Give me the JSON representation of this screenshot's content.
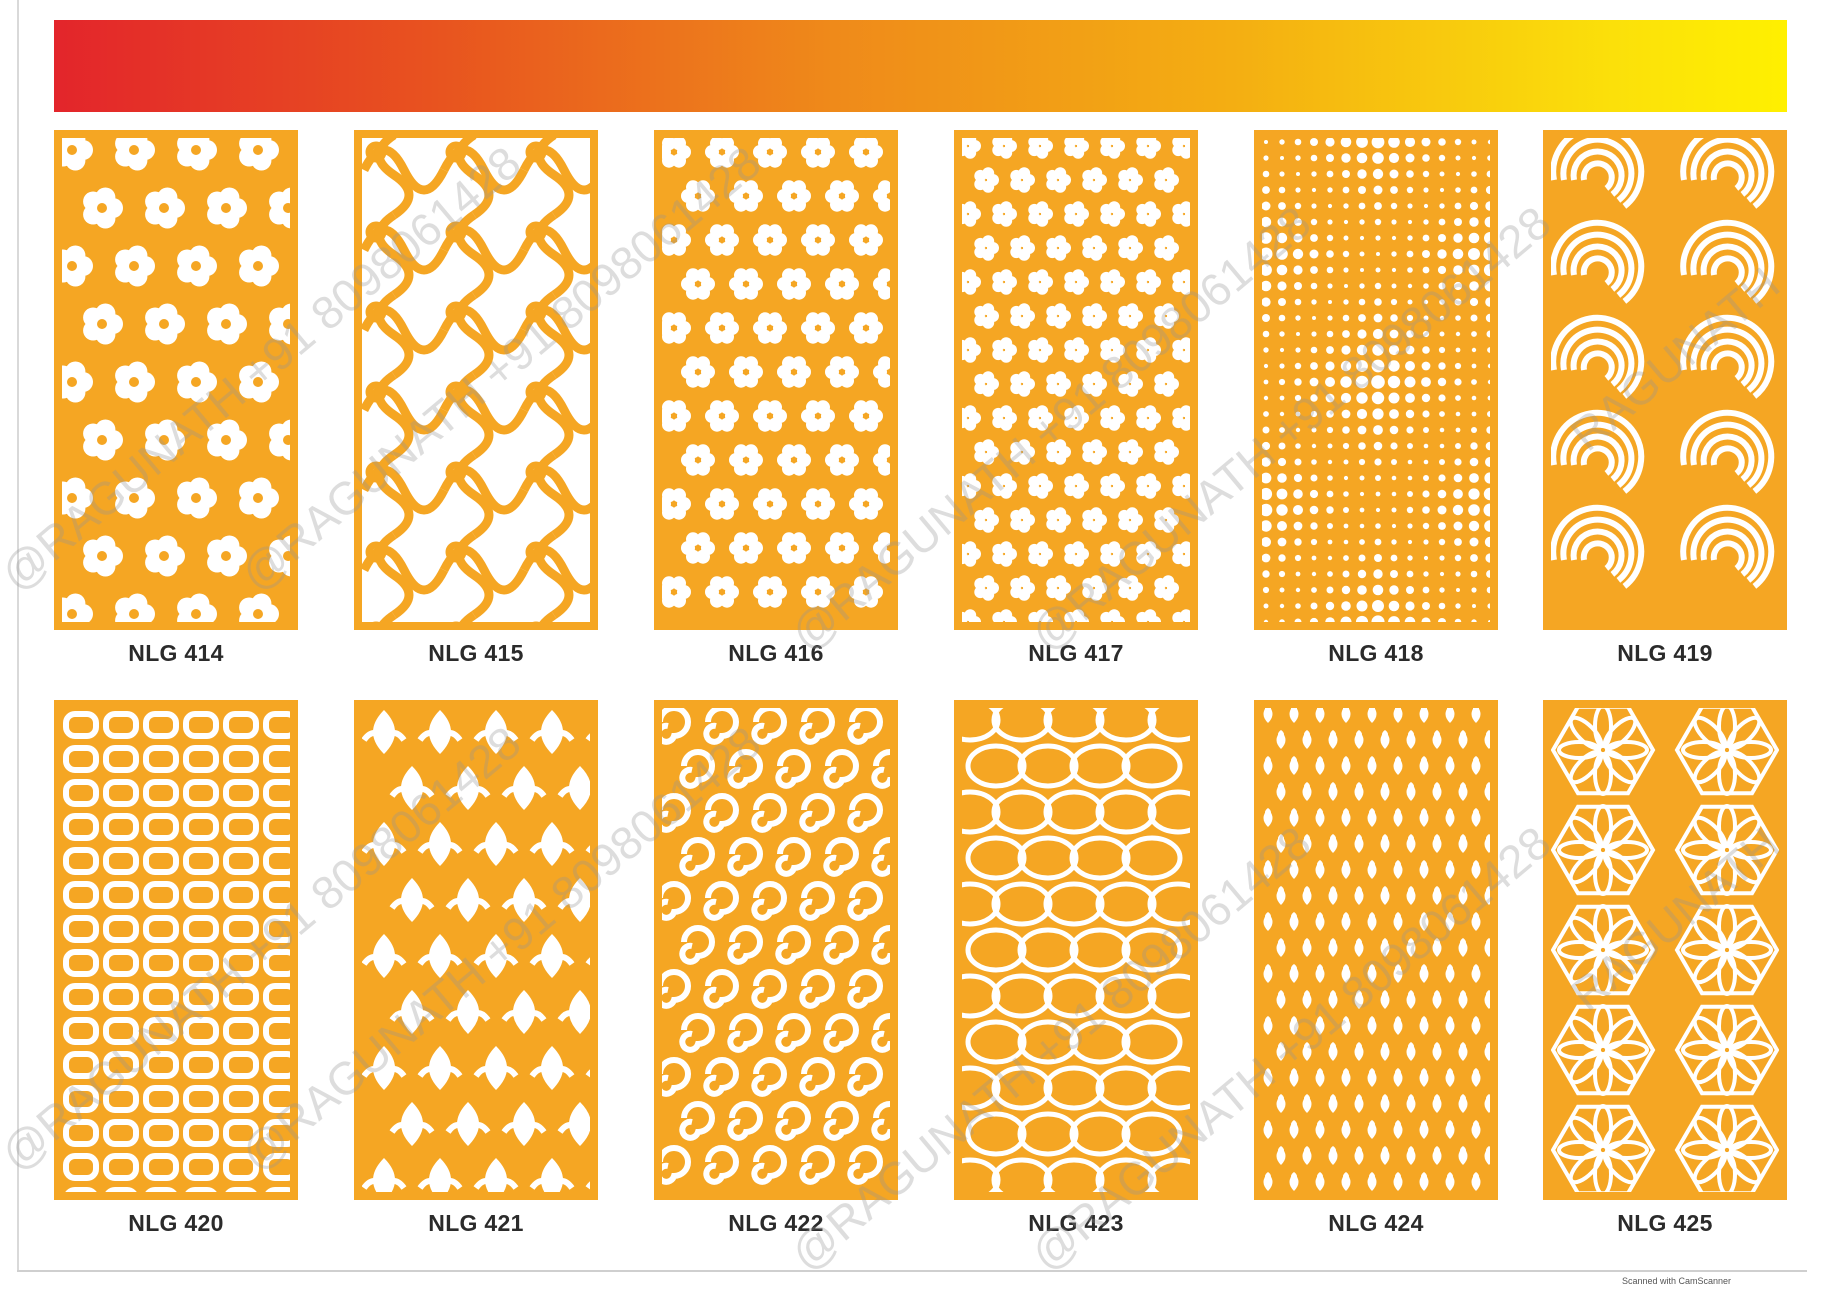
{
  "colors": {
    "panel": "#f5a623",
    "cutout": "#ffffff",
    "gradient_start": "#e3252b",
    "gradient_end": "#fff000"
  },
  "panels": [
    {
      "label": "NLG 414",
      "pattern": "hibiscus-flower-pattern"
    },
    {
      "label": "NLG 415",
      "pattern": "scroll-swirl-pattern"
    },
    {
      "label": "NLG 416",
      "pattern": "daisy-flower-pattern"
    },
    {
      "label": "NLG 417",
      "pattern": "cherry-blossom-pattern"
    },
    {
      "label": "NLG 418",
      "pattern": "polka-dot-diamond-pattern"
    },
    {
      "label": "NLG 419",
      "pattern": "rose-swirl-pattern"
    },
    {
      "label": "NLG 420",
      "pattern": "interlocking-link-pattern"
    },
    {
      "label": "NLG 421",
      "pattern": "ogee-fleur-pattern"
    },
    {
      "label": "NLG 422",
      "pattern": "curl-swirl-pattern"
    },
    {
      "label": "NLG 423",
      "pattern": "interlocking-ring-pattern"
    },
    {
      "label": "NLG 424",
      "pattern": "quatrefoil-lattice-pattern"
    },
    {
      "label": "NLG 425",
      "pattern": "geometric-star-pattern"
    }
  ],
  "watermark": {
    "text_a": "@RAGUNATH +91 8098061428",
    "text_b": "RAGUNATH"
  },
  "footer": {
    "scanner_note": "Scanned with CamScanner"
  }
}
